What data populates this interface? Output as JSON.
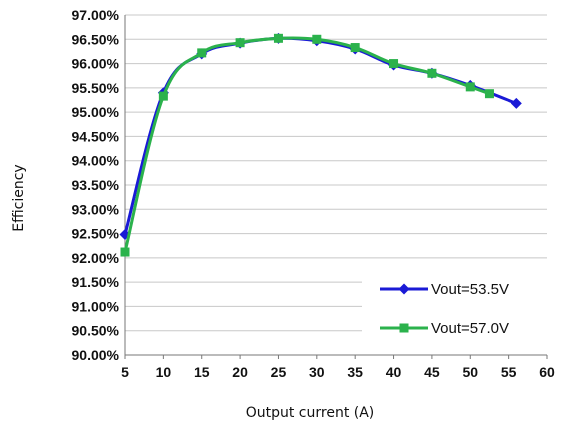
{
  "chart_data": {
    "type": "line",
    "xlabel": "Output current (A)",
    "ylabel": "Efficiency",
    "xlim": [
      5,
      60
    ],
    "ylim": [
      90.0,
      97.0
    ],
    "x_ticks": [
      "5",
      "10",
      "15",
      "20",
      "25",
      "30",
      "35",
      "40",
      "45",
      "50",
      "55",
      "60"
    ],
    "y_ticks": [
      "90.00%",
      "90.50%",
      "91.00%",
      "91.50%",
      "92.00%",
      "92.50%",
      "93.00%",
      "93.50%",
      "94.00%",
      "94.50%",
      "95.00%",
      "95.50%",
      "96.00%",
      "96.50%",
      "97.00%"
    ],
    "grid": "horizontal",
    "legend_position": "bottom-right",
    "series": [
      {
        "name": "Vout=53.5V",
        "color": "#1a1ad6",
        "marker": "diamond",
        "x": [
          5,
          10,
          15,
          20,
          25,
          30,
          35,
          40,
          45,
          50,
          56
        ],
        "y": [
          92.48,
          95.4,
          96.2,
          96.42,
          96.52,
          96.47,
          96.3,
          95.97,
          95.8,
          95.55,
          95.18
        ]
      },
      {
        "name": "Vout=57.0V",
        "color": "#2bb24c",
        "marker": "square",
        "x": [
          5,
          10,
          15,
          20,
          25,
          30,
          35,
          40,
          45,
          50,
          52.5
        ],
        "y": [
          92.12,
          95.33,
          96.22,
          96.43,
          96.52,
          96.5,
          96.33,
          96.0,
          95.8,
          95.52,
          95.38
        ]
      }
    ]
  }
}
